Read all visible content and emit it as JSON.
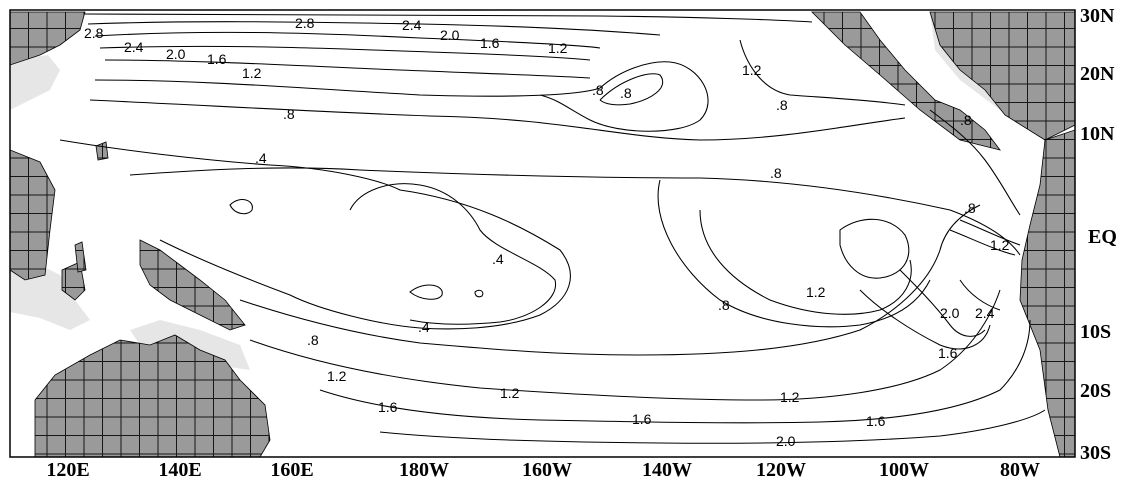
{
  "map": {
    "x_axis_labels": [
      "120E",
      "140E",
      "160E",
      "180W",
      "160W",
      "140W",
      "120W",
      "100W",
      "80W"
    ],
    "y_axis_labels": [
      "30N",
      "20N",
      "10N",
      "EQ",
      "10S",
      "20S",
      "30S"
    ],
    "contour_levels": [
      ".4",
      ".8",
      "1.2",
      "1.6",
      "2.0",
      "2.4",
      "2.8"
    ],
    "contour_labels": [
      "2.8",
      "2.4",
      "2.0",
      "1.6",
      "2.8",
      "2.4",
      "2.0",
      "1.6",
      "1.2",
      "1.2",
      ".8",
      ".8",
      "1.2",
      ".8",
      ".8",
      ".4",
      ".8",
      ".8",
      ".4",
      "1.2",
      ".8",
      ".4",
      ".8",
      "1.2",
      "2.0",
      "2.4",
      "1.6",
      ".8",
      "1.2",
      "1.2",
      "1.2",
      "1.6",
      "1.6",
      "1.6",
      "2.0"
    ],
    "land_color": "#9a9a9a",
    "island_color": "#e6e6e6"
  }
}
